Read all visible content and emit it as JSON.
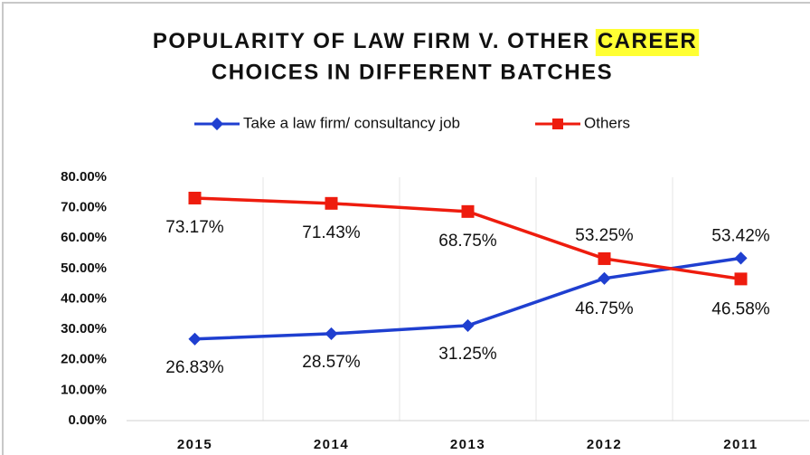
{
  "chart_data": {
    "type": "line",
    "title": [
      "POPULARITY OF LAW FIRM V. OTHER",
      "CAREER",
      "CHOICES IN DIFFERENT BATCHES"
    ],
    "title_highlight_color": "#ffff33",
    "categories": [
      "2015",
      "2014",
      "2013",
      "2012",
      "2011"
    ],
    "series": [
      {
        "name": "Take a law firm/ consultancy job",
        "color": "#1f3fd0",
        "values": [
          26.83,
          28.57,
          31.25,
          46.75,
          53.42
        ],
        "value_labels": [
          "26.83%",
          "28.57%",
          "31.25%",
          "46.75%",
          "53.42%"
        ]
      },
      {
        "name": "Others",
        "color": "#ee1c0e",
        "values": [
          73.17,
          71.43,
          68.75,
          53.25,
          46.58
        ],
        "value_labels": [
          "73.17%",
          "71.43%",
          "68.75%",
          "53.25%",
          "46.58%"
        ]
      }
    ],
    "ylim": [
      0,
      80
    ],
    "yticks": [
      {
        "value": 0,
        "label": "0.00%"
      },
      {
        "value": 10,
        "label": "10.00%"
      },
      {
        "value": 20,
        "label": "20.00%"
      },
      {
        "value": 30,
        "label": "30.00%"
      },
      {
        "value": 40,
        "label": "40.00%"
      },
      {
        "value": 50,
        "label": "50.00%"
      },
      {
        "value": 60,
        "label": "60.00%"
      },
      {
        "value": 70,
        "label": "70.00%"
      },
      {
        "value": 80,
        "label": "80.00%"
      }
    ],
    "legend": "top"
  }
}
